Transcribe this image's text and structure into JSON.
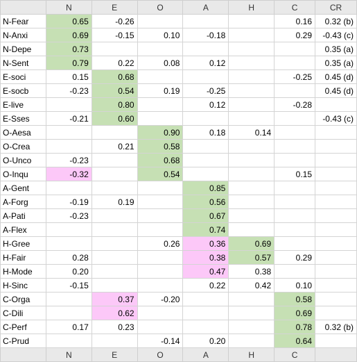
{
  "columns": [
    "",
    "N",
    "E",
    "O",
    "A",
    "H",
    "C",
    "CR"
  ],
  "footer_columns": [
    "",
    "N",
    "E",
    "O",
    "A",
    "H",
    "C",
    ""
  ],
  "colors": {
    "green": "#c6e0b4",
    "pink": "#fcc8f8"
  },
  "rows": [
    {
      "label": "N-Fear",
      "values": [
        "0.65",
        "-0.26",
        "",
        "",
        "",
        "0.16",
        "0.32 (b)"
      ],
      "hl": {
        "0": "green"
      }
    },
    {
      "label": "N-Anxi",
      "values": [
        "0.69",
        "-0.15",
        "0.10",
        "-0.18",
        "",
        "0.29",
        "-0.43 (c)"
      ],
      "hl": {
        "0": "green"
      }
    },
    {
      "label": "N-Depe",
      "values": [
        "0.73",
        "",
        "",
        "",
        "",
        "",
        "0.35 (a)"
      ],
      "hl": {
        "0": "green"
      }
    },
    {
      "label": "N-Sent",
      "values": [
        "0.79",
        "0.22",
        "0.08",
        "0.12",
        "",
        "",
        "0.35 (a)"
      ],
      "hl": {
        "0": "green"
      }
    },
    {
      "label": "E-soci",
      "values": [
        "0.15",
        "0.68",
        "",
        "",
        "",
        "-0.25",
        "0.45 (d)"
      ],
      "hl": {
        "1": "green"
      }
    },
    {
      "label": "E-socb",
      "values": [
        "-0.23",
        "0.54",
        "0.19",
        "-0.25",
        "",
        "",
        "0.45 (d)"
      ],
      "hl": {
        "1": "green"
      }
    },
    {
      "label": "E-live",
      "values": [
        "",
        "0.80",
        "",
        "0.12",
        "",
        "-0.28",
        ""
      ],
      "hl": {
        "1": "green"
      }
    },
    {
      "label": "E-Sses",
      "values": [
        "-0.21",
        "0.60",
        "",
        "",
        "",
        "",
        "-0.43 (c)"
      ],
      "hl": {
        "1": "green"
      }
    },
    {
      "label": "O-Aesa",
      "values": [
        "",
        "",
        "0.90",
        "0.18",
        "0.14",
        "",
        ""
      ],
      "hl": {
        "2": "green"
      }
    },
    {
      "label": "O-Crea",
      "values": [
        "",
        "0.21",
        "0.58",
        "",
        "",
        "",
        ""
      ],
      "hl": {
        "2": "green"
      }
    },
    {
      "label": "O-Unco",
      "values": [
        "-0.23",
        "",
        "0.68",
        "",
        "",
        "",
        ""
      ],
      "hl": {
        "2": "green"
      }
    },
    {
      "label": "O-Inqu",
      "values": [
        "-0.32",
        "",
        "0.54",
        "",
        "",
        "0.15",
        ""
      ],
      "hl": {
        "0": "pink",
        "2": "green"
      }
    },
    {
      "label": "A-Gent",
      "values": [
        "",
        "",
        "",
        "0.85",
        "",
        "",
        ""
      ],
      "hl": {
        "3": "green"
      }
    },
    {
      "label": "A-Forg",
      "values": [
        "-0.19",
        "0.19",
        "",
        "0.56",
        "",
        "",
        ""
      ],
      "hl": {
        "3": "green"
      }
    },
    {
      "label": "A-Pati",
      "values": [
        "-0.23",
        "",
        "",
        "0.67",
        "",
        "",
        ""
      ],
      "hl": {
        "3": "green"
      }
    },
    {
      "label": "A-Flex",
      "values": [
        "",
        "",
        "",
        "0.74",
        "",
        "",
        ""
      ],
      "hl": {
        "3": "green"
      }
    },
    {
      "label": "H-Gree",
      "values": [
        "",
        "",
        "0.26",
        "0.36",
        "0.69",
        "",
        ""
      ],
      "hl": {
        "3": "pink",
        "4": "green"
      }
    },
    {
      "label": "H-Fair",
      "values": [
        "0.28",
        "",
        "",
        "0.38",
        "0.57",
        "0.29",
        ""
      ],
      "hl": {
        "3": "pink",
        "4": "green"
      }
    },
    {
      "label": "H-Mode",
      "values": [
        "0.20",
        "",
        "",
        "0.47",
        "0.38",
        "",
        ""
      ],
      "hl": {
        "3": "pink"
      }
    },
    {
      "label": "H-Sinc",
      "values": [
        "-0.15",
        "",
        "",
        "0.22",
        "0.42",
        "0.10",
        ""
      ],
      "hl": {}
    },
    {
      "label": "C-Orga",
      "values": [
        "",
        "0.37",
        "-0.20",
        "",
        "",
        "0.58",
        ""
      ],
      "hl": {
        "1": "pink",
        "5": "green"
      }
    },
    {
      "label": "C-Dili",
      "values": [
        "",
        "0.62",
        "",
        "",
        "",
        "0.69",
        ""
      ],
      "hl": {
        "1": "pink",
        "5": "green"
      }
    },
    {
      "label": "C-Perf",
      "values": [
        "0.17",
        "0.23",
        "",
        "",
        "",
        "0.78",
        "0.32 (b)"
      ],
      "hl": {
        "5": "green"
      }
    },
    {
      "label": "C-Prud",
      "values": [
        "",
        "",
        "-0.14",
        "0.20",
        "",
        "0.64",
        ""
      ],
      "hl": {
        "5": "green"
      }
    }
  ]
}
